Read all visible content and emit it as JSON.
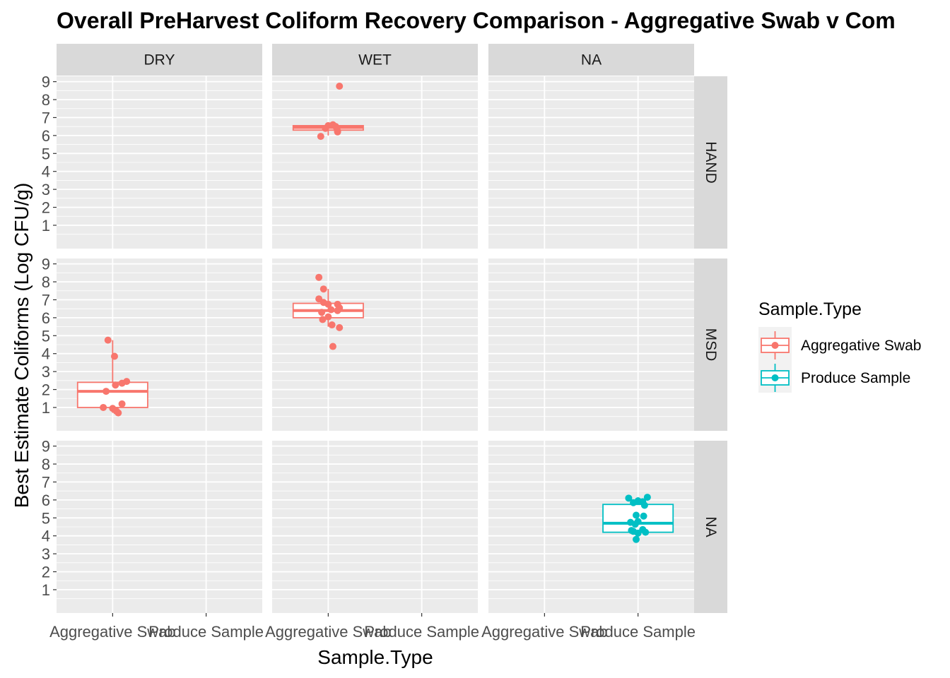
{
  "chart_data": {
    "type": "boxplot",
    "title": "Overall PreHarvest Coliform Recovery Comparison - Aggregative Swab v Com",
    "xlabel": "Sample.Type",
    "ylabel": "Best Estimate Coliforms (Log CFU/g)",
    "categories": [
      "Aggregative Swab",
      "Produce Sample"
    ],
    "col_facets": [
      "DRY",
      "WET",
      "NA"
    ],
    "row_facets": [
      "HAND",
      "MSD",
      "NA"
    ],
    "ylim": [
      -0.3,
      9.3
    ],
    "yticks": [
      1,
      2,
      3,
      4,
      5,
      6,
      7,
      8,
      9
    ],
    "legend": {
      "title": "Sample.Type",
      "position": "right",
      "entries": [
        {
          "label": "Aggregative Swab",
          "color": "#F8766D"
        },
        {
          "label": "Produce Sample",
          "color": "#00BFC4"
        }
      ]
    },
    "colors": {
      "panel_bg": "#EBEBEB",
      "strip_bg": "#D9D9D9",
      "grid": "#FFFFFF",
      "Aggregative Swab": "#F8766D",
      "Produce Sample": "#00BFC4"
    },
    "boxes": [
      {
        "col": "WET",
        "row": "HAND",
        "category": "Aggregative Swab",
        "q1": 6.3,
        "median": 6.45,
        "q3": 6.55,
        "whisker_low": 6.0,
        "whisker_high": 6.6,
        "points": [
          {
            "x_offset": 0.12,
            "y": 8.75
          },
          {
            "x_offset": 0.0,
            "y": 6.55
          },
          {
            "x_offset": 0.05,
            "y": 6.6
          },
          {
            "x_offset": 0.08,
            "y": 6.5
          },
          {
            "x_offset": -0.03,
            "y": 6.4
          },
          {
            "x_offset": 0.1,
            "y": 6.25
          },
          {
            "x_offset": 0.1,
            "y": 6.2
          },
          {
            "x_offset": -0.08,
            "y": 5.95
          }
        ]
      },
      {
        "col": "DRY",
        "row": "MSD",
        "category": "Aggregative Swab",
        "q1": 1.0,
        "median": 1.9,
        "q3": 2.4,
        "whisker_low": 0.7,
        "whisker_high": 4.75,
        "points": [
          {
            "x_offset": -0.05,
            "y": 4.75
          },
          {
            "x_offset": 0.02,
            "y": 3.85
          },
          {
            "x_offset": 0.15,
            "y": 2.45
          },
          {
            "x_offset": 0.1,
            "y": 2.35
          },
          {
            "x_offset": 0.03,
            "y": 2.25
          },
          {
            "x_offset": -0.07,
            "y": 1.9
          },
          {
            "x_offset": 0.1,
            "y": 1.2
          },
          {
            "x_offset": -0.1,
            "y": 1.0
          },
          {
            "x_offset": 0.0,
            "y": 0.95
          },
          {
            "x_offset": 0.04,
            "y": 0.8
          },
          {
            "x_offset": 0.06,
            "y": 0.7
          }
        ]
      },
      {
        "col": "WET",
        "row": "MSD",
        "category": "Aggregative Swab",
        "q1": 6.0,
        "median": 6.4,
        "q3": 6.8,
        "whisker_low": 5.5,
        "whisker_high": 7.6,
        "points": [
          {
            "x_offset": -0.1,
            "y": 8.25
          },
          {
            "x_offset": -0.05,
            "y": 7.6
          },
          {
            "x_offset": -0.1,
            "y": 7.05
          },
          {
            "x_offset": -0.05,
            "y": 6.85
          },
          {
            "x_offset": 0.0,
            "y": 6.75
          },
          {
            "x_offset": 0.1,
            "y": 6.75
          },
          {
            "x_offset": 0.12,
            "y": 6.55
          },
          {
            "x_offset": 0.1,
            "y": 6.4
          },
          {
            "x_offset": 0.03,
            "y": 6.45
          },
          {
            "x_offset": -0.07,
            "y": 6.3
          },
          {
            "x_offset": 0.0,
            "y": 6.05
          },
          {
            "x_offset": -0.06,
            "y": 5.9
          },
          {
            "x_offset": 0.04,
            "y": 5.6
          },
          {
            "x_offset": 0.12,
            "y": 5.45
          },
          {
            "x_offset": 0.05,
            "y": 4.4
          }
        ]
      },
      {
        "col": "NA",
        "row": "NA",
        "category": "Produce Sample",
        "q1": 4.2,
        "median": 4.7,
        "q3": 5.75,
        "whisker_low": 3.75,
        "whisker_high": 6.15,
        "points": [
          {
            "x_offset": -0.1,
            "y": 6.1
          },
          {
            "x_offset": 0.1,
            "y": 6.15
          },
          {
            "x_offset": -0.05,
            "y": 5.85
          },
          {
            "x_offset": 0.05,
            "y": 5.9
          },
          {
            "x_offset": 0.0,
            "y": 5.95
          },
          {
            "x_offset": 0.07,
            "y": 5.7
          },
          {
            "x_offset": -0.02,
            "y": 5.15
          },
          {
            "x_offset": 0.06,
            "y": 5.1
          },
          {
            "x_offset": -0.08,
            "y": 4.75
          },
          {
            "x_offset": 0.0,
            "y": 4.8
          },
          {
            "x_offset": -0.03,
            "y": 4.65
          },
          {
            "x_offset": 0.05,
            "y": 4.35
          },
          {
            "x_offset": -0.05,
            "y": 4.25
          },
          {
            "x_offset": 0.08,
            "y": 4.2
          },
          {
            "x_offset": 0.0,
            "y": 4.15
          },
          {
            "x_offset": -0.07,
            "y": 4.3
          },
          {
            "x_offset": -0.02,
            "y": 3.8
          }
        ]
      }
    ]
  }
}
